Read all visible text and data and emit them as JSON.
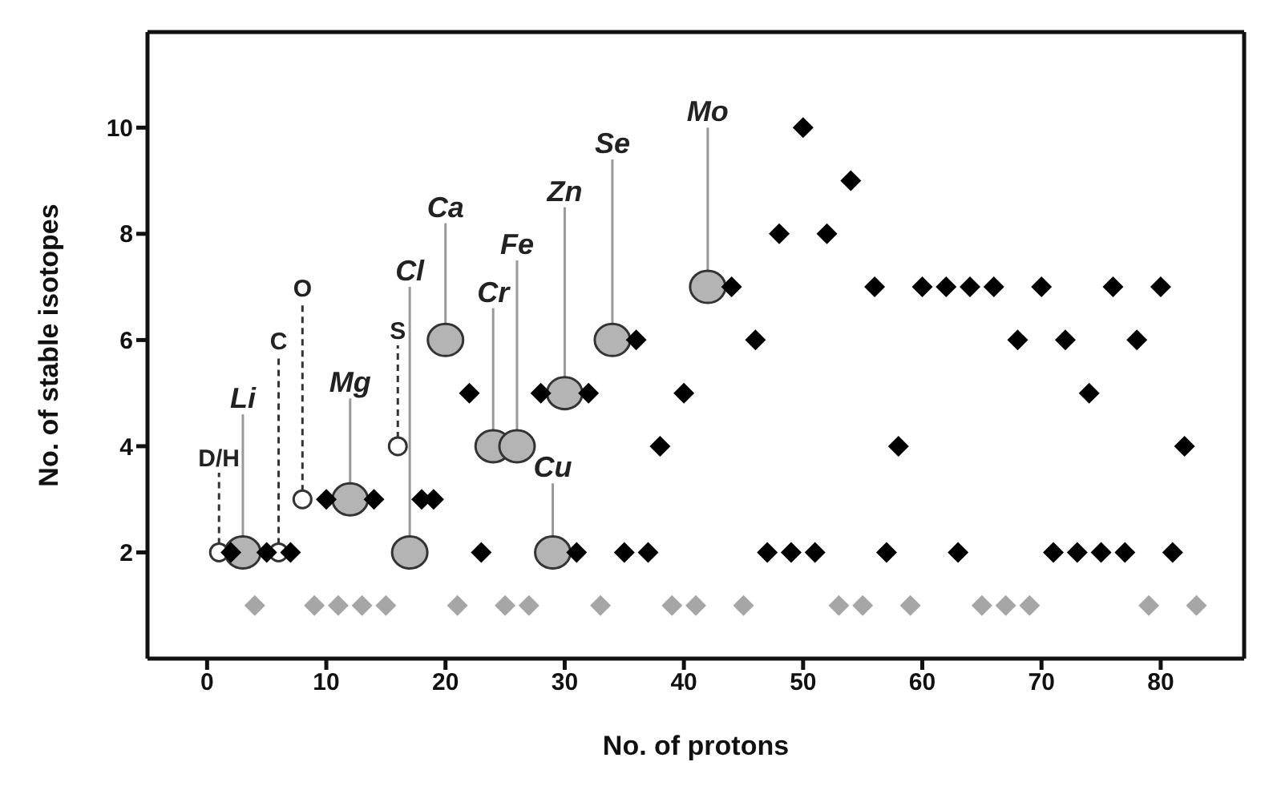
{
  "chart_data": {
    "type": "scatter",
    "xlabel": "No. of protons",
    "ylabel": "No. of stable isotopes",
    "xlim": [
      -5,
      87
    ],
    "xticks": [
      0,
      10,
      20,
      30,
      40,
      50,
      60,
      70,
      80
    ],
    "ylim": [
      0,
      11.8
    ],
    "yticks": [
      2,
      4,
      6,
      8,
      10
    ],
    "series": [
      {
        "color": "#ffffff",
        "marker": "circle",
        "line_style": "dashed",
        "x": [
          1,
          6,
          8,
          16
        ],
        "values": [
          2,
          2,
          3,
          4
        ]
      },
      {
        "color": "#b4b4b4",
        "marker": "circle",
        "line_style": "solid",
        "x": [
          3,
          12,
          17,
          20,
          24,
          26,
          29,
          30,
          34,
          42
        ],
        "values": [
          2,
          3,
          2,
          6,
          4,
          4,
          2,
          5,
          6,
          7
        ]
      },
      {
        "color": "#a6a6a6",
        "marker": "diamond",
        "x": [
          4,
          9,
          11,
          13,
          15,
          21,
          25,
          27,
          33,
          39,
          41,
          45,
          53,
          55,
          59,
          65,
          67,
          69,
          79,
          83
        ],
        "values": [
          1,
          1,
          1,
          1,
          1,
          1,
          1,
          1,
          1,
          1,
          1,
          1,
          1,
          1,
          1,
          1,
          1,
          1,
          1,
          1
        ]
      },
      {
        "color": "#000000",
        "marker": "diamond",
        "x": [
          2,
          5,
          7,
          10,
          14,
          18,
          19,
          22,
          23,
          28,
          31,
          32,
          35,
          36,
          37,
          38,
          40,
          44,
          46,
          47,
          48,
          49,
          50,
          51,
          52,
          54,
          56,
          57,
          58,
          60,
          62,
          63,
          64,
          66,
          68,
          70,
          71,
          72,
          73,
          74,
          75,
          76,
          77,
          78,
          80,
          81,
          82
        ],
        "values": [
          2,
          2,
          2,
          3,
          3,
          3,
          3,
          5,
          2,
          5,
          2,
          5,
          2,
          6,
          2,
          4,
          5,
          7,
          6,
          2,
          8,
          2,
          10,
          2,
          8,
          9,
          7,
          2,
          4,
          7,
          7,
          2,
          7,
          7,
          6,
          7,
          2,
          6,
          2,
          5,
          2,
          7,
          2,
          6,
          7,
          2,
          4
        ]
      }
    ],
    "annotations": [
      {
        "text": "D/H",
        "x": 1,
        "y": 2
      },
      {
        "text": "Li",
        "x": 3,
        "y": 2
      },
      {
        "text": "C",
        "x": 6,
        "y": 2
      },
      {
        "text": "O",
        "x": 8,
        "y": 3
      },
      {
        "text": "Mg",
        "x": 12,
        "y": 3
      },
      {
        "text": "S",
        "x": 16,
        "y": 4
      },
      {
        "text": "Cl",
        "x": 17,
        "y": 2
      },
      {
        "text": "Ca",
        "x": 20,
        "y": 6
      },
      {
        "text": "Cr",
        "x": 24,
        "y": 4
      },
      {
        "text": "Fe",
        "x": 26,
        "y": 4
      },
      {
        "text": "Cu",
        "x": 29,
        "y": 2
      },
      {
        "text": "Zn",
        "x": 30,
        "y": 5
      },
      {
        "text": "Se",
        "x": 34,
        "y": 6
      },
      {
        "text": "Mo",
        "x": 42,
        "y": 7
      }
    ]
  }
}
